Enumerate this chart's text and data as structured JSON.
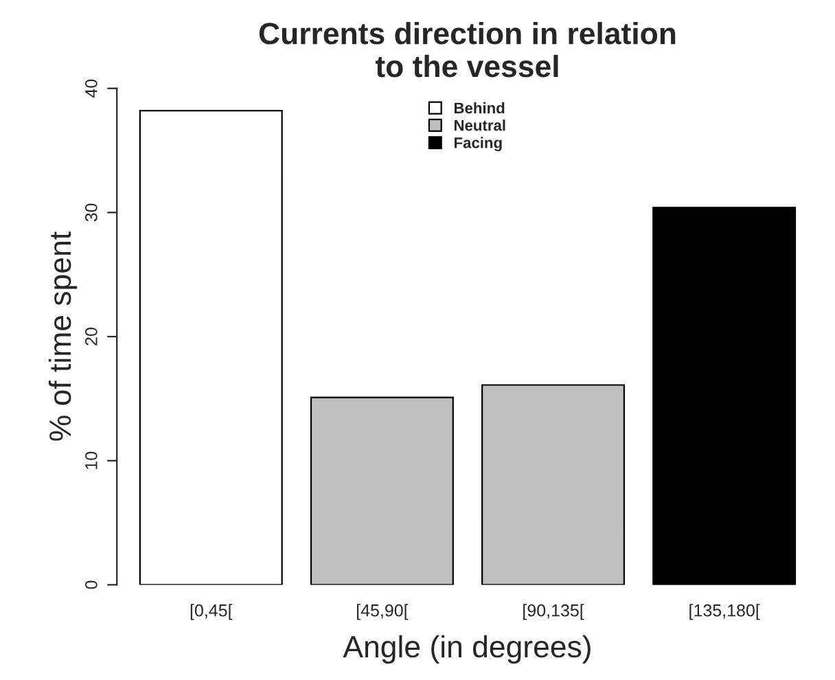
{
  "chart_data": {
    "type": "bar",
    "title": "Currents direction in relation\nto the vessel",
    "xlabel": "Angle (in degrees)",
    "ylabel": "% of time spent",
    "categories": [
      "[0,45[",
      "[45,90[",
      "[90,135[",
      "[135,180["
    ],
    "series": [
      {
        "name": "Behind",
        "color": "#ffffff",
        "values": [
          38.2,
          null,
          null,
          null
        ]
      },
      {
        "name": "Neutral",
        "color": "#bebebe",
        "values": [
          null,
          15.1,
          16.1,
          null
        ]
      },
      {
        "name": "Facing",
        "color": "#000000",
        "values": [
          null,
          null,
          null,
          30.4
        ]
      }
    ],
    "ylim": [
      0,
      40
    ],
    "yticks": [
      0,
      10,
      20,
      30,
      40
    ],
    "grid": false,
    "legend": "top"
  }
}
